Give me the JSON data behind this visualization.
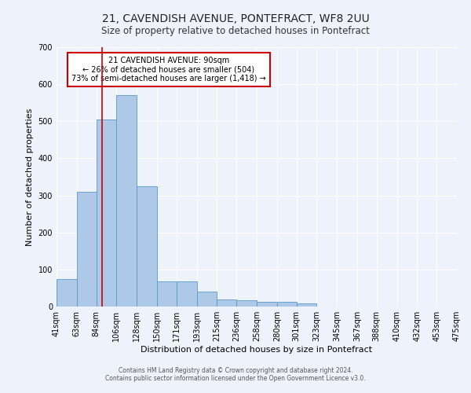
{
  "title": "21, CAVENDISH AVENUE, PONTEFRACT, WF8 2UU",
  "subtitle": "Size of property relative to detached houses in Pontefract",
  "xlabel": "Distribution of detached houses by size in Pontefract",
  "ylabel": "Number of detached properties",
  "bar_edges": [
    41,
    63,
    84,
    106,
    128,
    150,
    171,
    193,
    215,
    236,
    258,
    280,
    301,
    323,
    345,
    367,
    388,
    410,
    432,
    453,
    475
  ],
  "bar_heights": [
    75,
    310,
    505,
    570,
    325,
    68,
    68,
    40,
    20,
    17,
    12,
    12,
    8,
    0,
    0,
    0,
    0,
    0,
    0,
    0
  ],
  "bar_color": "#aec8e8",
  "bar_edge_color": "#5a9ac8",
  "vline_x": 90,
  "vline_color": "#cc0000",
  "annotation_line1": "21 CAVENDISH AVENUE: 90sqm",
  "annotation_line2": "← 26% of detached houses are smaller (504)",
  "annotation_line3": "73% of semi-detached houses are larger (1,418) →",
  "annotation_box_color": "#ffffff",
  "annotation_box_edge": "#cc0000",
  "ylim": [
    0,
    700
  ],
  "yticks": [
    0,
    100,
    200,
    300,
    400,
    500,
    600,
    700
  ],
  "tick_labels": [
    "41sqm",
    "63sqm",
    "84sqm",
    "106sqm",
    "128sqm",
    "150sqm",
    "171sqm",
    "193sqm",
    "215sqm",
    "236sqm",
    "258sqm",
    "280sqm",
    "301sqm",
    "323sqm",
    "345sqm",
    "367sqm",
    "388sqm",
    "410sqm",
    "432sqm",
    "453sqm",
    "475sqm"
  ],
  "footer_line1": "Contains HM Land Registry data © Crown copyright and database right 2024.",
  "footer_line2": "Contains public sector information licensed under the Open Government Licence v3.0.",
  "bg_color": "#eef2fa",
  "grid_color": "#ffffff",
  "title_fontsize": 10,
  "subtitle_fontsize": 8.5,
  "axis_label_fontsize": 8,
  "tick_fontsize": 7,
  "footer_fontsize": 5.5
}
